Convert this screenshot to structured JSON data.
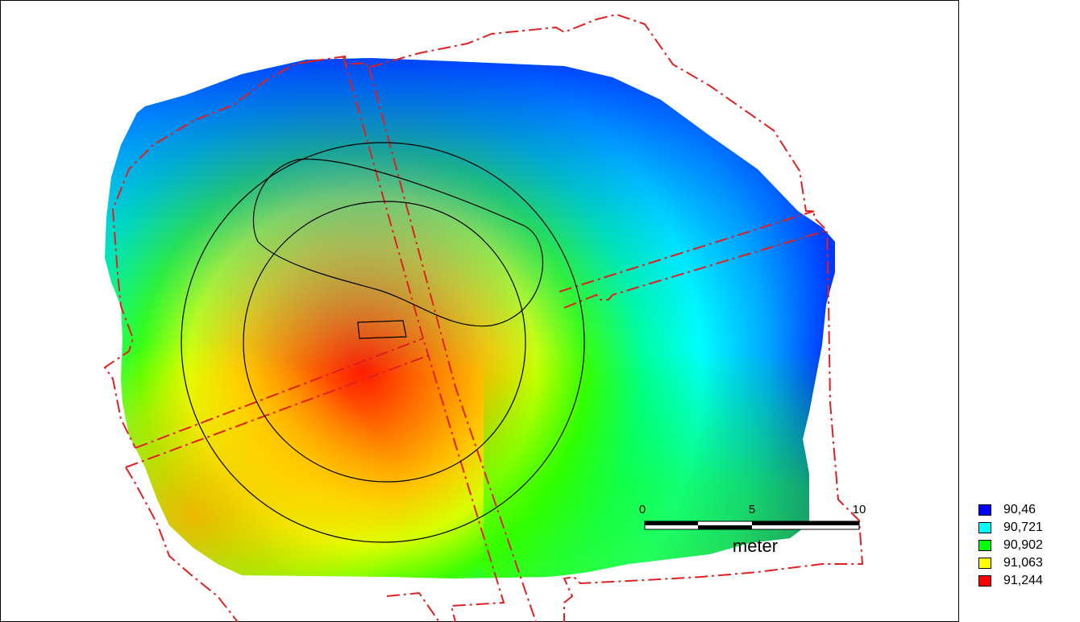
{
  "scale_bar": {
    "ticks": [
      "0",
      "5",
      "10"
    ],
    "unit": "meter"
  },
  "legend": {
    "items": [
      {
        "label": "90,46",
        "color": "#0000ff"
      },
      {
        "label": "90,721",
        "color": "#00ffff"
      },
      {
        "label": "90,902",
        "color": "#00ff00"
      },
      {
        "label": "91,063",
        "color": "#ffff00"
      },
      {
        "label": "91,244",
        "color": "#ff0000"
      }
    ]
  },
  "colors": {
    "boundary_line": "#e02020",
    "contour_line": "#000000"
  }
}
